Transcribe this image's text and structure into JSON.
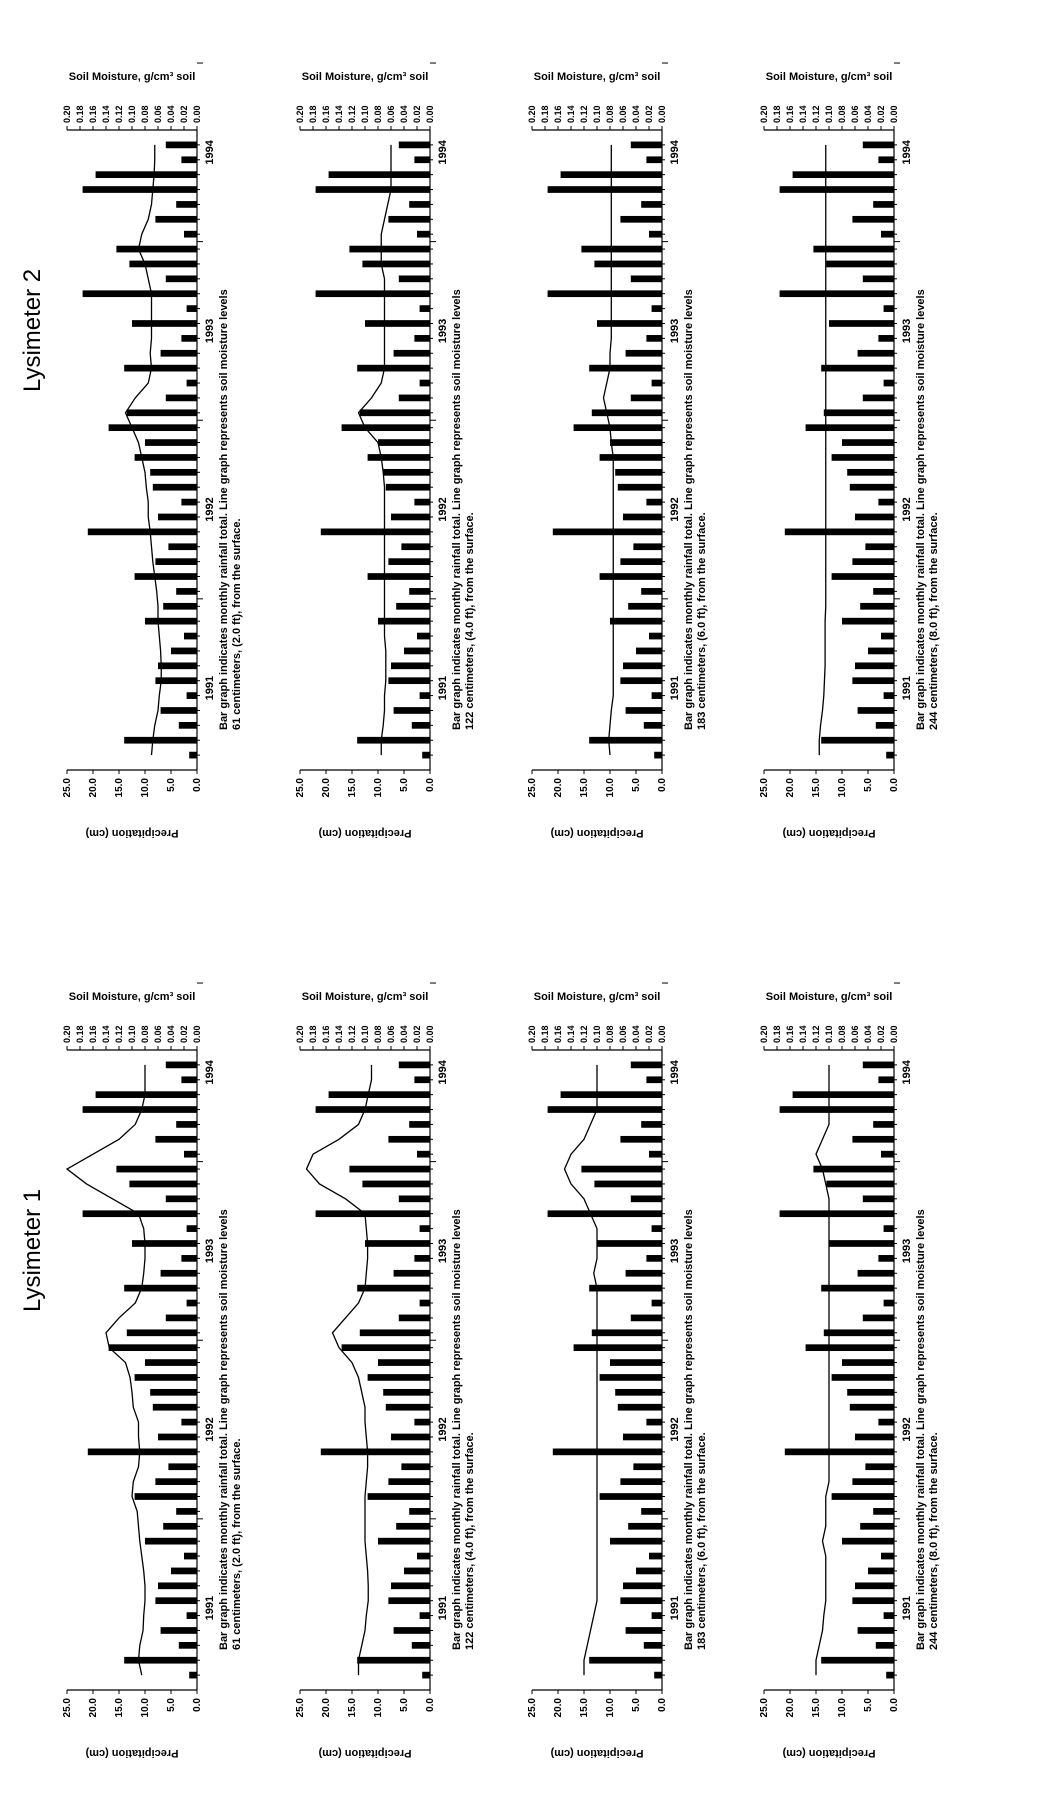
{
  "headings": {
    "left_group": "Lysimeter 1",
    "right_group": "Lysimeter 2"
  },
  "common": {
    "precip_axis_label": "Precipitation (cm)",
    "moisture_axis_label": "Soil Moisture, g/cm³ soil",
    "precip_ticks": [
      "0.0",
      "5.0",
      "10.0",
      "15.0",
      "20.0",
      "25.0"
    ],
    "moisture_ticks": [
      "0.00",
      "0.02",
      "0.04",
      "0.06",
      "0.08",
      "0.10",
      "0.12",
      "0.14",
      "0.16",
      "0.18",
      "0.20"
    ],
    "year_labels": [
      "1991",
      "1992",
      "1993",
      "1994"
    ],
    "caption_line1": "Bar graph indicates monthly rainfall total. Line graph represents soil moisture levels"
  },
  "chart_data": [
    {
      "type": "bar",
      "panel": "Lysimeter 1",
      "depth_caption": "61 centimeters, (2.0 ft), from the surface.",
      "x_unit": "month index from start of record (tick labels 1991-1994)",
      "ylim_precip_cm": [
        0,
        25
      ],
      "ylim_moisture": [
        0,
        0.2
      ],
      "grid": false,
      "precip_cm": [
        1.5,
        14.0,
        3.5,
        7.0,
        2.0,
        8.0,
        7.5,
        5.0,
        2.5,
        10.0,
        6.5,
        4.0,
        12.0,
        8.0,
        5.5,
        21.0,
        7.5,
        3.0,
        8.5,
        9.0,
        12.0,
        10.0,
        17.0,
        13.5,
        6.0,
        2.0,
        14.0,
        7.0,
        3.0,
        12.5,
        2.0,
        22.0,
        6.0,
        13.0,
        15.5,
        2.5,
        8.0,
        4.0,
        22.0,
        19.5,
        3.0,
        6.0
      ],
      "moisture_line": [
        0.085,
        0.09,
        0.088,
        0.083,
        0.082,
        0.08,
        0.08,
        0.082,
        0.085,
        0.088,
        0.09,
        0.092,
        0.1,
        0.098,
        0.09,
        0.088,
        0.09,
        0.09,
        0.098,
        0.1,
        0.103,
        0.11,
        0.135,
        0.14,
        0.12,
        0.095,
        0.085,
        0.082,
        0.08,
        0.08,
        0.082,
        0.09,
        0.13,
        0.17,
        0.2,
        0.16,
        0.12,
        0.095,
        0.085,
        0.08,
        0.08,
        0.08
      ]
    },
    {
      "type": "bar",
      "panel": "Lysimeter 1",
      "depth_caption": "122 centimeters, (4.0 ft), from the surface.",
      "x_unit": "month index from start of record (tick labels 1991-1994)",
      "ylim_precip_cm": [
        0,
        25
      ],
      "ylim_moisture": [
        0,
        0.2
      ],
      "grid": false,
      "precip_cm": [
        1.5,
        14.0,
        3.5,
        7.0,
        2.0,
        8.0,
        7.5,
        5.0,
        2.5,
        10.0,
        6.5,
        4.0,
        12.0,
        8.0,
        5.5,
        21.0,
        7.5,
        3.0,
        8.5,
        9.0,
        12.0,
        10.0,
        17.0,
        13.5,
        6.0,
        2.0,
        14.0,
        7.0,
        3.0,
        12.5,
        2.0,
        22.0,
        6.0,
        13.0,
        15.5,
        2.5,
        8.0,
        4.0,
        22.0,
        19.5,
        3.0,
        6.0
      ],
      "moisture_line": [
        0.11,
        0.11,
        0.105,
        0.1,
        0.098,
        0.095,
        0.095,
        0.096,
        0.098,
        0.1,
        0.1,
        0.1,
        0.1,
        0.098,
        0.096,
        0.096,
        0.098,
        0.1,
        0.1,
        0.105,
        0.11,
        0.12,
        0.14,
        0.15,
        0.13,
        0.11,
        0.1,
        0.098,
        0.096,
        0.096,
        0.098,
        0.1,
        0.13,
        0.17,
        0.19,
        0.18,
        0.14,
        0.11,
        0.1,
        0.095,
        0.09,
        0.09
      ]
    },
    {
      "type": "bar",
      "panel": "Lysimeter 1",
      "depth_caption": "183 centimeters, (6.0 ft), from the surface.",
      "x_unit": "month index from start of record (tick labels 1991-1994)",
      "ylim_precip_cm": [
        0,
        25
      ],
      "ylim_moisture": [
        0,
        0.2
      ],
      "grid": false,
      "precip_cm": [
        1.5,
        14.0,
        3.5,
        7.0,
        2.0,
        8.0,
        7.5,
        5.0,
        2.5,
        10.0,
        6.5,
        4.0,
        12.0,
        8.0,
        5.5,
        21.0,
        7.5,
        3.0,
        8.5,
        9.0,
        12.0,
        10.0,
        17.0,
        13.5,
        6.0,
        2.0,
        14.0,
        7.0,
        3.0,
        12.5,
        2.0,
        22.0,
        6.0,
        13.0,
        15.5,
        2.5,
        8.0,
        4.0,
        22.0,
        19.5,
        3.0,
        6.0
      ],
      "moisture_line": [
        0.12,
        0.12,
        0.115,
        0.11,
        0.105,
        0.1,
        0.1,
        0.1,
        0.1,
        0.1,
        0.1,
        0.1,
        0.1,
        0.1,
        0.1,
        0.1,
        0.1,
        0.1,
        0.1,
        0.1,
        0.1,
        0.1,
        0.1,
        0.1,
        0.1,
        0.1,
        0.1,
        0.105,
        0.1,
        0.1,
        0.1,
        0.11,
        0.12,
        0.14,
        0.15,
        0.14,
        0.12,
        0.11,
        0.1,
        0.1,
        0.1,
        0.1
      ]
    },
    {
      "type": "bar",
      "panel": "Lysimeter 1",
      "depth_caption": "244 centimeters, (8.0 ft), from the surface.",
      "x_unit": "month index from start of record (tick labels 1991-1994)",
      "ylim_precip_cm": [
        0,
        25
      ],
      "ylim_moisture": [
        0,
        0.2
      ],
      "grid": false,
      "precip_cm": [
        1.5,
        14.0,
        3.5,
        7.0,
        2.0,
        8.0,
        7.5,
        5.0,
        2.5,
        10.0,
        6.5,
        4.0,
        12.0,
        8.0,
        5.5,
        21.0,
        7.5,
        3.0,
        8.5,
        9.0,
        12.0,
        10.0,
        17.0,
        13.5,
        6.0,
        2.0,
        14.0,
        7.0,
        3.0,
        12.5,
        2.0,
        22.0,
        6.0,
        13.0,
        15.5,
        2.5,
        8.0,
        4.0,
        22.0,
        19.5,
        3.0,
        6.0
      ],
      "moisture_line": [
        0.12,
        0.12,
        0.115,
        0.11,
        0.108,
        0.105,
        0.105,
        0.105,
        0.105,
        0.11,
        0.105,
        0.105,
        0.105,
        0.1,
        0.1,
        0.1,
        0.1,
        0.1,
        0.1,
        0.1,
        0.1,
        0.1,
        0.1,
        0.1,
        0.1,
        0.1,
        0.1,
        0.1,
        0.1,
        0.1,
        0.1,
        0.1,
        0.1,
        0.105,
        0.11,
        0.12,
        0.11,
        0.1,
        0.1,
        0.1,
        0.1,
        0.1
      ]
    },
    {
      "type": "bar",
      "panel": "Lysimeter 2",
      "depth_caption": "61 centimeters, (2.0 ft), from the surface.",
      "x_unit": "month index from start of record (tick labels 1991-1994)",
      "ylim_precip_cm": [
        0,
        25
      ],
      "ylim_moisture": [
        0,
        0.2
      ],
      "grid": false,
      "precip_cm": [
        1.5,
        14.0,
        3.5,
        7.0,
        2.0,
        8.0,
        7.5,
        5.0,
        2.5,
        10.0,
        6.5,
        4.0,
        12.0,
        8.0,
        5.5,
        21.0,
        7.5,
        3.0,
        8.5,
        9.0,
        12.0,
        10.0,
        17.0,
        13.5,
        6.0,
        2.0,
        14.0,
        7.0,
        3.0,
        12.5,
        2.0,
        22.0,
        6.0,
        13.0,
        15.5,
        2.5,
        8.0,
        4.0,
        22.0,
        19.5,
        3.0,
        6.0
      ],
      "moisture_line": [
        0.07,
        0.068,
        0.065,
        0.06,
        0.058,
        0.055,
        0.055,
        0.056,
        0.058,
        0.06,
        0.06,
        0.062,
        0.065,
        0.068,
        0.07,
        0.072,
        0.075,
        0.075,
        0.078,
        0.08,
        0.085,
        0.09,
        0.1,
        0.11,
        0.095,
        0.075,
        0.07,
        0.072,
        0.07,
        0.07,
        0.07,
        0.07,
        0.075,
        0.08,
        0.09,
        0.085,
        0.075,
        0.07,
        0.068,
        0.066,
        0.065,
        0.065
      ]
    },
    {
      "type": "bar",
      "panel": "Lysimeter 2",
      "depth_caption": "122 centimeters, (4.0 ft), from the surface.",
      "x_unit": "month index from start of record (tick labels 1991-1994)",
      "ylim_precip_cm": [
        0,
        25
      ],
      "ylim_moisture": [
        0,
        0.2
      ],
      "grid": false,
      "precip_cm": [
        1.5,
        14.0,
        3.5,
        7.0,
        2.0,
        8.0,
        7.5,
        5.0,
        2.5,
        10.0,
        6.5,
        4.0,
        12.0,
        8.0,
        5.5,
        21.0,
        7.5,
        3.0,
        8.5,
        9.0,
        12.0,
        10.0,
        17.0,
        13.5,
        6.0,
        2.0,
        14.0,
        7.0,
        3.0,
        12.5,
        2.0,
        22.0,
        6.0,
        13.0,
        15.5,
        2.5,
        8.0,
        4.0,
        22.0,
        19.5,
        3.0,
        6.0
      ],
      "moisture_line": [
        0.075,
        0.075,
        0.072,
        0.07,
        0.07,
        0.068,
        0.068,
        0.068,
        0.07,
        0.07,
        0.07,
        0.07,
        0.07,
        0.07,
        0.07,
        0.07,
        0.07,
        0.07,
        0.07,
        0.072,
        0.075,
        0.08,
        0.1,
        0.11,
        0.09,
        0.075,
        0.07,
        0.07,
        0.07,
        0.07,
        0.07,
        0.07,
        0.07,
        0.075,
        0.075,
        0.075,
        0.07,
        0.065,
        0.06,
        0.06,
        0.06,
        0.06
      ]
    },
    {
      "type": "bar",
      "panel": "Lysimeter 2",
      "depth_caption": "183 centimeters, (6.0 ft), from the surface.",
      "x_unit": "month index from start of record (tick labels 1991-1994)",
      "ylim_precip_cm": [
        0,
        25
      ],
      "ylim_moisture": [
        0,
        0.2
      ],
      "grid": false,
      "precip_cm": [
        1.5,
        14.0,
        3.5,
        7.0,
        2.0,
        8.0,
        7.5,
        5.0,
        2.5,
        10.0,
        6.5,
        4.0,
        12.0,
        8.0,
        5.5,
        21.0,
        7.5,
        3.0,
        8.5,
        9.0,
        12.0,
        10.0,
        17.0,
        13.5,
        6.0,
        2.0,
        14.0,
        7.0,
        3.0,
        12.5,
        2.0,
        22.0,
        6.0,
        13.0,
        15.5,
        2.5,
        8.0,
        4.0,
        22.0,
        19.5,
        3.0,
        6.0
      ],
      "moisture_line": [
        0.08,
        0.082,
        0.08,
        0.078,
        0.075,
        0.075,
        0.075,
        0.075,
        0.075,
        0.075,
        0.075,
        0.075,
        0.075,
        0.075,
        0.075,
        0.075,
        0.075,
        0.075,
        0.075,
        0.075,
        0.075,
        0.078,
        0.08,
        0.085,
        0.09,
        0.085,
        0.08,
        0.08,
        0.078,
        0.078,
        0.078,
        0.078,
        0.078,
        0.078,
        0.078,
        0.078,
        0.078,
        0.078,
        0.078,
        0.078,
        0.078,
        0.078
      ]
    },
    {
      "type": "bar",
      "panel": "Lysimeter 2",
      "depth_caption": "244 centimeters, (8.0 ft), from the surface.",
      "x_unit": "month index from start of record (tick labels 1991-1994)",
      "ylim_precip_cm": [
        0,
        25
      ],
      "ylim_moisture": [
        0,
        0.2
      ],
      "grid": false,
      "precip_cm": [
        1.5,
        14.0,
        3.5,
        7.0,
        2.0,
        8.0,
        7.5,
        5.0,
        2.5,
        10.0,
        6.5,
        4.0,
        12.0,
        8.0,
        5.5,
        21.0,
        7.5,
        3.0,
        8.5,
        9.0,
        12.0,
        10.0,
        17.0,
        13.5,
        6.0,
        2.0,
        14.0,
        7.0,
        3.0,
        12.5,
        2.0,
        22.0,
        6.0,
        13.0,
        15.5,
        2.5,
        8.0,
        4.0,
        22.0,
        19.5,
        3.0,
        6.0
      ],
      "moisture_line": [
        0.115,
        0.115,
        0.113,
        0.11,
        0.108,
        0.107,
        0.106,
        0.106,
        0.106,
        0.106,
        0.105,
        0.105,
        0.105,
        0.105,
        0.105,
        0.105,
        0.105,
        0.105,
        0.105,
        0.105,
        0.105,
        0.105,
        0.105,
        0.105,
        0.105,
        0.105,
        0.105,
        0.105,
        0.105,
        0.105,
        0.105,
        0.105,
        0.105,
        0.105,
        0.105,
        0.105,
        0.105,
        0.105,
        0.105,
        0.105,
        0.105,
        0.105
      ]
    }
  ]
}
